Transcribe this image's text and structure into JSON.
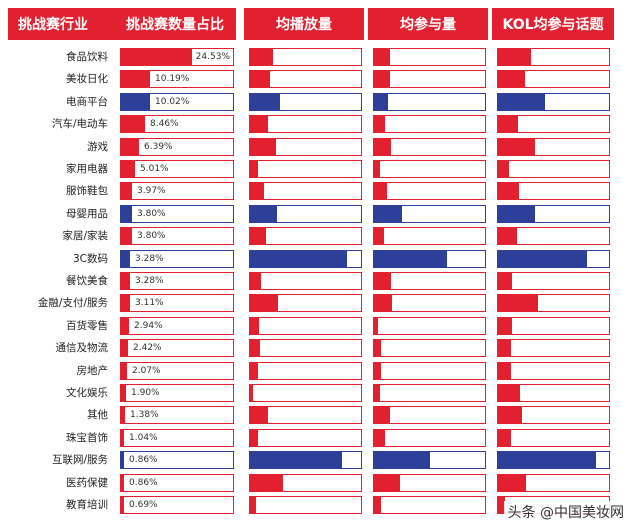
{
  "chart_data": {
    "type": "table",
    "headers": [
      "挑战赛行业",
      "挑战赛数量占比",
      "均播放量",
      "均参与量",
      "KOL均参与话题"
    ],
    "rows": [
      {
        "category": "食品饮料",
        "share_label": "24.53%",
        "share": 24.53,
        "avg_plays": 0.21,
        "avg_participation": 0.14,
        "kol_avg_topics": 0.3,
        "highlight": false
      },
      {
        "category": "美妆日化",
        "share_label": "10.19%",
        "share": 10.19,
        "avg_plays": 0.18,
        "avg_participation": 0.14,
        "kol_avg_topics": 0.24,
        "highlight": false
      },
      {
        "category": "电商平台",
        "share_label": "10.02%",
        "share": 10.02,
        "avg_plays": 0.27,
        "avg_participation": 0.13,
        "kol_avg_topics": 0.42,
        "highlight": true
      },
      {
        "category": "汽车/电动车",
        "share_label": "8.46%",
        "share": 8.46,
        "avg_plays": 0.16,
        "avg_participation": 0.1,
        "kol_avg_topics": 0.18,
        "highlight": false
      },
      {
        "category": "游戏",
        "share_label": "6.39%",
        "share": 6.39,
        "avg_plays": 0.23,
        "avg_participation": 0.15,
        "kol_avg_topics": 0.33,
        "highlight": false
      },
      {
        "category": "家用电器",
        "share_label": "5.01%",
        "share": 5.01,
        "avg_plays": 0.07,
        "avg_participation": 0.05,
        "kol_avg_topics": 0.1,
        "highlight": false
      },
      {
        "category": "服饰鞋包",
        "share_label": "3.97%",
        "share": 3.97,
        "avg_plays": 0.13,
        "avg_participation": 0.12,
        "kol_avg_topics": 0.19,
        "highlight": false
      },
      {
        "category": "母婴用品",
        "share_label": "3.80%",
        "share": 3.8,
        "avg_plays": 0.24,
        "avg_participation": 0.25,
        "kol_avg_topics": 0.33,
        "highlight": true
      },
      {
        "category": "家居/家装",
        "share_label": "3.80%",
        "share": 3.8,
        "avg_plays": 0.14,
        "avg_participation": 0.09,
        "kol_avg_topics": 0.17,
        "highlight": false
      },
      {
        "category": "3C数码",
        "share_label": "3.28%",
        "share": 3.28,
        "avg_plays": 0.87,
        "avg_participation": 0.66,
        "kol_avg_topics": 0.8,
        "highlight": true
      },
      {
        "category": "餐饮美食",
        "share_label": "3.28%",
        "share": 3.28,
        "avg_plays": 0.1,
        "avg_participation": 0.15,
        "kol_avg_topics": 0.13,
        "highlight": false
      },
      {
        "category": "金融/支付/服务",
        "share_label": "3.11%",
        "share": 3.11,
        "avg_plays": 0.25,
        "avg_participation": 0.16,
        "kol_avg_topics": 0.36,
        "highlight": false
      },
      {
        "category": "百货零售",
        "share_label": "2.94%",
        "share": 2.94,
        "avg_plays": 0.08,
        "avg_participation": 0.04,
        "kol_avg_topics": 0.13,
        "highlight": false
      },
      {
        "category": "通信及物流",
        "share_label": "2.42%",
        "share": 2.42,
        "avg_plays": 0.09,
        "avg_participation": 0.06,
        "kol_avg_topics": 0.12,
        "highlight": false
      },
      {
        "category": "房地产",
        "share_label": "2.07%",
        "share": 2.07,
        "avg_plays": 0.07,
        "avg_participation": 0.06,
        "kol_avg_topics": 0.12,
        "highlight": false
      },
      {
        "category": "文化娱乐",
        "share_label": "1.90%",
        "share": 1.9,
        "avg_plays": 0.03,
        "avg_participation": 0.05,
        "kol_avg_topics": 0.2,
        "highlight": false
      },
      {
        "category": "其他",
        "share_label": "1.38%",
        "share": 1.38,
        "avg_plays": 0.16,
        "avg_participation": 0.14,
        "kol_avg_topics": 0.22,
        "highlight": false
      },
      {
        "category": "珠宝首饰",
        "share_label": "1.04%",
        "share": 1.04,
        "avg_plays": 0.07,
        "avg_participation": 0.1,
        "kol_avg_topics": 0.12,
        "highlight": false
      },
      {
        "category": "互联网/服务",
        "share_label": "0.86%",
        "share": 0.86,
        "avg_plays": 0.83,
        "avg_participation": 0.5,
        "kol_avg_topics": 0.88,
        "highlight": true
      },
      {
        "category": "医药保健",
        "share_label": "0.86%",
        "share": 0.86,
        "avg_plays": 0.3,
        "avg_participation": 0.23,
        "kol_avg_topics": 0.25,
        "highlight": false
      },
      {
        "category": "教育培训",
        "share_label": "0.69%",
        "share": 0.69,
        "avg_plays": 0.05,
        "avg_participation": 0.06,
        "kol_avg_topics": 0.06,
        "highlight": false
      }
    ]
  },
  "colors": {
    "accent": "#e3202f",
    "highlight": "#2e3f9a"
  },
  "watermark": "头条 @中国美妆网"
}
